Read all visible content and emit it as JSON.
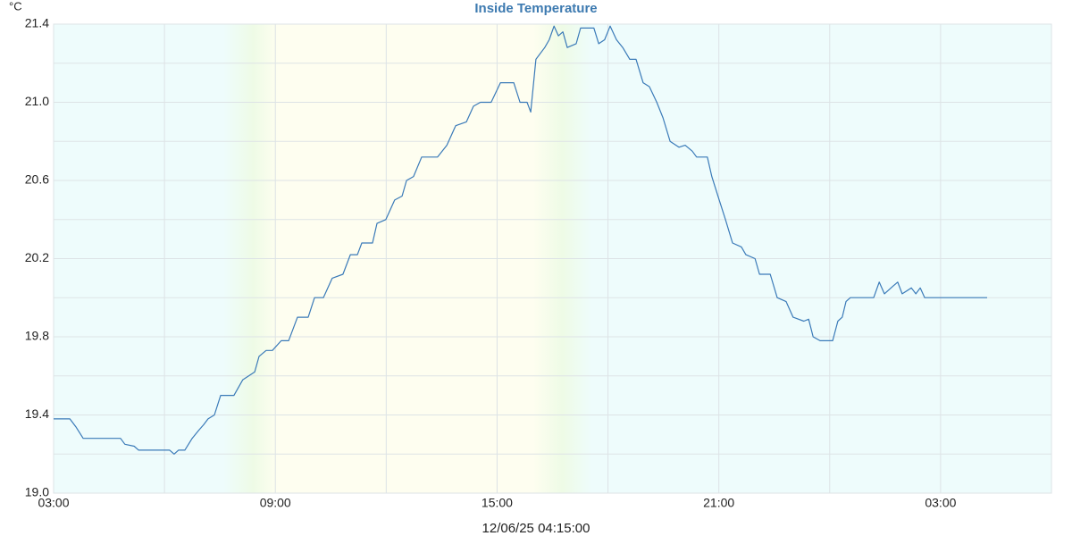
{
  "chart_data": {
    "type": "line",
    "title": "Inside Temperature",
    "y_unit": "°C",
    "footer": "12/06/25 04:15:00",
    "x": [
      0,
      0.44,
      0.6,
      0.8,
      1.81,
      1.93,
      2.18,
      2.3,
      3.14,
      3.26,
      3.38,
      3.55,
      3.75,
      3.92,
      4.06,
      4.18,
      4.35,
      4.52,
      4.88,
      5.12,
      5.44,
      5.56,
      5.75,
      5.92,
      6.16,
      6.36,
      6.6,
      6.89,
      7.06,
      7.3,
      7.54,
      7.83,
      8.03,
      8.22,
      8.34,
      8.63,
      8.75,
      8.99,
      9.23,
      9.43,
      9.55,
      9.74,
      9.96,
      10.39,
      10.64,
      10.88,
      11.17,
      11.36,
      11.55,
      11.84,
      12.09,
      12.45,
      12.62,
      12.81,
      12.91,
      13.05,
      13.29,
      13.41,
      13.54,
      13.66,
      13.78,
      13.9,
      14.14,
      14.26,
      14.62,
      14.75,
      14.91,
      15.06,
      15.23,
      15.4,
      15.59,
      15.76,
      15.95,
      16.12,
      16.32,
      16.49,
      16.68,
      16.92,
      17.09,
      17.28,
      17.4,
      17.69,
      17.81,
      18.01,
      18.18,
      18.37,
      18.61,
      18.73,
      18.98,
      19.1,
      19.39,
      19.58,
      19.82,
      20.01,
      20.3,
      20.43,
      20.55,
      20.74,
      21.08,
      21.22,
      21.34,
      21.44,
      21.56,
      22.19,
      22.34,
      22.48,
      22.72,
      22.84,
      22.96,
      23.21,
      23.33,
      23.45,
      23.57,
      25.26
    ],
    "series": [
      {
        "name": "Inside Temperature",
        "color": "#3a7ab8",
        "values": [
          19.38,
          19.38,
          19.34,
          19.28,
          19.28,
          19.25,
          19.24,
          19.22,
          19.22,
          19.2,
          19.22,
          19.22,
          19.28,
          19.32,
          19.35,
          19.38,
          19.4,
          19.5,
          19.5,
          19.58,
          19.62,
          19.7,
          19.73,
          19.73,
          19.78,
          19.78,
          19.9,
          19.9,
          20.0,
          20.0,
          20.1,
          20.12,
          20.22,
          20.22,
          20.28,
          20.28,
          20.38,
          20.4,
          20.5,
          20.52,
          20.6,
          20.62,
          20.72,
          20.72,
          20.78,
          20.88,
          20.9,
          20.98,
          21.0,
          21.0,
          21.1,
          21.1,
          21.0,
          21.0,
          20.95,
          21.22,
          21.28,
          21.32,
          21.39,
          21.34,
          21.36,
          21.28,
          21.3,
          21.38,
          21.38,
          21.3,
          21.32,
          21.39,
          21.32,
          21.28,
          21.22,
          21.22,
          21.1,
          21.08,
          21.0,
          20.92,
          20.8,
          20.77,
          20.78,
          20.75,
          20.72,
          20.72,
          20.62,
          20.5,
          20.4,
          20.28,
          20.26,
          20.22,
          20.2,
          20.12,
          20.12,
          20.0,
          19.98,
          19.9,
          19.88,
          19.89,
          19.8,
          19.78,
          19.78,
          19.88,
          19.9,
          19.98,
          20.0,
          20.0,
          20.08,
          20.02,
          20.06,
          20.08,
          20.02,
          20.05,
          20.02,
          20.05,
          20.0,
          20.0
        ]
      }
    ],
    "xlim": [
      0,
      27
    ],
    "xticks": [
      {
        "value": 0,
        "label": "03:00"
      },
      {
        "value": 6,
        "label": "09:00"
      },
      {
        "value": 12,
        "label": "15:00"
      },
      {
        "value": 18,
        "label": "21:00"
      },
      {
        "value": 24,
        "label": "03:00"
      }
    ],
    "xminor": [
      3,
      9,
      15,
      21,
      27
    ],
    "ylim": [
      19.0,
      21.4
    ],
    "yticks": [
      {
        "value": 19.0,
        "label": "19.0"
      },
      19.4,
      19.8,
      20.2,
      20.6,
      {
        "value": 21.0,
        "label": "21.0"
      },
      21.4
    ],
    "yminor": [
      19.2,
      19.6,
      20.0,
      20.4,
      20.8,
      21.2
    ],
    "grid": true
  }
}
